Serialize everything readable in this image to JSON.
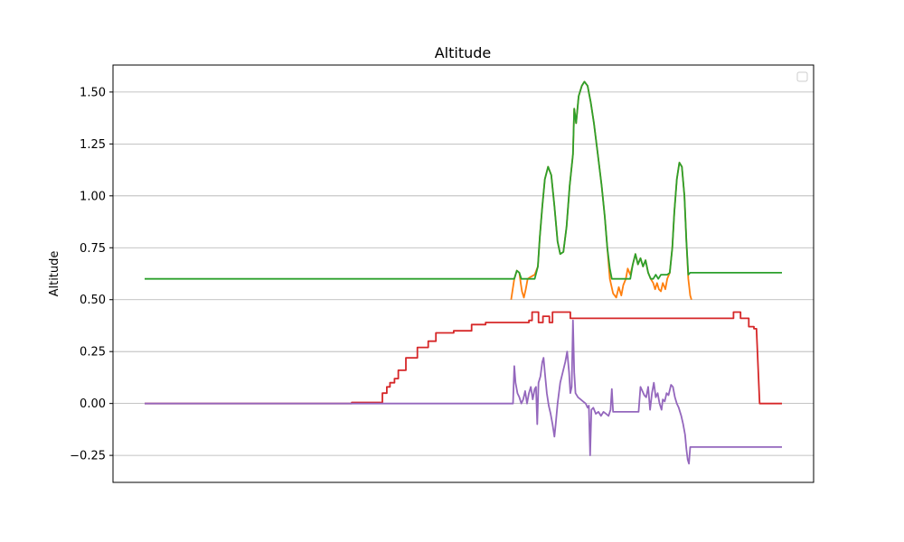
{
  "chart_data": {
    "type": "line",
    "title": "Altitude",
    "xlabel": "",
    "ylabel": "Altitude",
    "xlim": [
      0,
      1000
    ],
    "ylim": [
      -0.38,
      1.63
    ],
    "yticks": [
      -0.25,
      0.0,
      0.25,
      0.5,
      0.75,
      1.0,
      1.25,
      1.5
    ],
    "ytick_labels": [
      "−0.25",
      "0.00",
      "0.25",
      "0.50",
      "0.75",
      "1.00",
      "1.25",
      "1.50"
    ],
    "grid": "horizontal",
    "legend": "top-right (empty)",
    "series": [
      {
        "color": "#ff7f0e",
        "points": [
          [
            575,
            0.5
          ],
          [
            580,
            0.6
          ],
          [
            584,
            0.64
          ],
          [
            588,
            0.63
          ],
          [
            590,
            0.58
          ],
          [
            592,
            0.54
          ],
          [
            595,
            0.51
          ],
          [
            598,
            0.55
          ],
          [
            601,
            0.6
          ],
          [
            606,
            0.61
          ],
          [
            612,
            0.62
          ],
          [
            617,
            0.66
          ],
          [
            620,
            0.8
          ],
          [
            624,
            0.95
          ],
          [
            628,
            1.08
          ],
          [
            633,
            1.14
          ],
          [
            638,
            1.1
          ],
          [
            643,
            0.95
          ],
          [
            648,
            0.78
          ],
          [
            652,
            0.72
          ],
          [
            657,
            0.73
          ],
          [
            662,
            0.85
          ],
          [
            667,
            1.05
          ],
          [
            672,
            1.2
          ],
          [
            674,
            1.42
          ],
          [
            677,
            1.35
          ],
          [
            681,
            1.48
          ],
          [
            686,
            1.53
          ],
          [
            690,
            1.55
          ],
          [
            695,
            1.53
          ],
          [
            700,
            1.45
          ],
          [
            705,
            1.35
          ],
          [
            711,
            1.2
          ],
          [
            717,
            1.05
          ],
          [
            722,
            0.9
          ],
          [
            726,
            0.75
          ],
          [
            730,
            0.6
          ],
          [
            735,
            0.53
          ],
          [
            740,
            0.51
          ],
          [
            744,
            0.56
          ],
          [
            748,
            0.52
          ],
          [
            751,
            0.57
          ],
          [
            755,
            0.6
          ],
          [
            758,
            0.65
          ],
          [
            762,
            0.62
          ],
          [
            766,
            0.67
          ],
          [
            770,
            0.72
          ],
          [
            774,
            0.67
          ],
          [
            778,
            0.7
          ],
          [
            782,
            0.66
          ],
          [
            786,
            0.69
          ],
          [
            790,
            0.63
          ],
          [
            794,
            0.6
          ],
          [
            798,
            0.58
          ],
          [
            801,
            0.55
          ],
          [
            804,
            0.58
          ],
          [
            807,
            0.55
          ],
          [
            810,
            0.54
          ],
          [
            813,
            0.58
          ],
          [
            817,
            0.55
          ],
          [
            820,
            0.6
          ],
          [
            824,
            0.63
          ],
          [
            828,
            0.75
          ],
          [
            831,
            0.92
          ],
          [
            835,
            1.08
          ],
          [
            839,
            1.16
          ],
          [
            843,
            1.14
          ],
          [
            847,
            1.0
          ],
          [
            850,
            0.78
          ],
          [
            853,
            0.6
          ],
          [
            856,
            0.52
          ],
          [
            858,
            0.5
          ]
        ]
      },
      {
        "color": "#2ca02c",
        "points": [
          [
            0,
            0.6
          ],
          [
            575,
            0.6
          ],
          [
            577,
            0.6
          ],
          [
            580,
            0.6
          ],
          [
            584,
            0.64
          ],
          [
            588,
            0.63
          ],
          [
            591,
            0.6
          ],
          [
            612,
            0.6
          ],
          [
            617,
            0.66
          ],
          [
            620,
            0.8
          ],
          [
            624,
            0.95
          ],
          [
            628,
            1.08
          ],
          [
            633,
            1.14
          ],
          [
            638,
            1.1
          ],
          [
            643,
            0.95
          ],
          [
            648,
            0.78
          ],
          [
            652,
            0.72
          ],
          [
            657,
            0.73
          ],
          [
            662,
            0.85
          ],
          [
            667,
            1.05
          ],
          [
            672,
            1.2
          ],
          [
            674,
            1.42
          ],
          [
            677,
            1.35
          ],
          [
            681,
            1.48
          ],
          [
            686,
            1.53
          ],
          [
            690,
            1.55
          ],
          [
            695,
            1.53
          ],
          [
            700,
            1.45
          ],
          [
            705,
            1.35
          ],
          [
            711,
            1.2
          ],
          [
            717,
            1.05
          ],
          [
            722,
            0.9
          ],
          [
            726,
            0.75
          ],
          [
            730,
            0.65
          ],
          [
            733,
            0.6
          ],
          [
            762,
            0.6
          ],
          [
            766,
            0.67
          ],
          [
            770,
            0.72
          ],
          [
            774,
            0.67
          ],
          [
            778,
            0.7
          ],
          [
            782,
            0.66
          ],
          [
            786,
            0.69
          ],
          [
            790,
            0.63
          ],
          [
            794,
            0.6
          ],
          [
            798,
            0.6
          ],
          [
            802,
            0.62
          ],
          [
            806,
            0.6
          ],
          [
            810,
            0.62
          ],
          [
            820,
            0.62
          ],
          [
            824,
            0.63
          ],
          [
            828,
            0.75
          ],
          [
            831,
            0.92
          ],
          [
            835,
            1.08
          ],
          [
            839,
            1.16
          ],
          [
            843,
            1.14
          ],
          [
            847,
            1.0
          ],
          [
            850,
            0.78
          ],
          [
            853,
            0.62
          ],
          [
            856,
            0.63
          ],
          [
            1000,
            0.63
          ]
        ]
      },
      {
        "color": "#d62728",
        "points": [
          [
            0,
            0.0
          ],
          [
            325,
            0.0
          ],
          [
            325,
            0.005
          ],
          [
            373,
            0.005
          ],
          [
            373,
            0.05
          ],
          [
            380,
            0.05
          ],
          [
            380,
            0.08
          ],
          [
            385,
            0.08
          ],
          [
            385,
            0.1
          ],
          [
            392,
            0.1
          ],
          [
            392,
            0.12
          ],
          [
            398,
            0.12
          ],
          [
            398,
            0.16
          ],
          [
            410,
            0.16
          ],
          [
            410,
            0.22
          ],
          [
            428,
            0.22
          ],
          [
            428,
            0.27
          ],
          [
            445,
            0.27
          ],
          [
            445,
            0.3
          ],
          [
            457,
            0.3
          ],
          [
            457,
            0.34
          ],
          [
            485,
            0.34
          ],
          [
            485,
            0.35
          ],
          [
            513,
            0.35
          ],
          [
            513,
            0.38
          ],
          [
            535,
            0.38
          ],
          [
            535,
            0.39
          ],
          [
            603,
            0.39
          ],
          [
            603,
            0.4
          ],
          [
            608,
            0.4
          ],
          [
            608,
            0.44
          ],
          [
            618,
            0.44
          ],
          [
            618,
            0.39
          ],
          [
            625,
            0.39
          ],
          [
            625,
            0.42
          ],
          [
            635,
            0.42
          ],
          [
            635,
            0.39
          ],
          [
            640,
            0.39
          ],
          [
            640,
            0.44
          ],
          [
            668,
            0.44
          ],
          [
            668,
            0.41
          ],
          [
            924,
            0.41
          ],
          [
            924,
            0.44
          ],
          [
            935,
            0.44
          ],
          [
            935,
            0.41
          ],
          [
            948,
            0.41
          ],
          [
            948,
            0.37
          ],
          [
            956,
            0.37
          ],
          [
            956,
            0.36
          ],
          [
            960,
            0.36
          ],
          [
            965,
            0.0
          ],
          [
            1000,
            0.0
          ]
        ]
      },
      {
        "color": "#9467bd",
        "points": [
          [
            0,
            0.0
          ],
          [
            576,
            0.0
          ],
          [
            578,
            0.0
          ],
          [
            580,
            0.18
          ],
          [
            582,
            0.1
          ],
          [
            585,
            0.05
          ],
          [
            588,
            0.03
          ],
          [
            591,
            0.0
          ],
          [
            594,
            0.02
          ],
          [
            597,
            0.06
          ],
          [
            600,
            0.0
          ],
          [
            603,
            0.05
          ],
          [
            606,
            0.08
          ],
          [
            609,
            0.02
          ],
          [
            612,
            0.07
          ],
          [
            614,
            0.08
          ],
          [
            616,
            -0.1
          ],
          [
            618,
            0.1
          ],
          [
            621,
            0.13
          ],
          [
            624,
            0.2
          ],
          [
            626,
            0.22
          ],
          [
            628,
            0.15
          ],
          [
            631,
            0.05
          ],
          [
            634,
            -0.01
          ],
          [
            637,
            -0.05
          ],
          [
            640,
            -0.1
          ],
          [
            643,
            -0.16
          ],
          [
            645,
            -0.1
          ],
          [
            648,
            0.0
          ],
          [
            652,
            0.1
          ],
          [
            656,
            0.15
          ],
          [
            660,
            0.2
          ],
          [
            663,
            0.25
          ],
          [
            666,
            0.15
          ],
          [
            668,
            0.05
          ],
          [
            670,
            0.08
          ],
          [
            672,
            0.4
          ],
          [
            674,
            0.15
          ],
          [
            676,
            0.05
          ],
          [
            680,
            0.03
          ],
          [
            684,
            0.02
          ],
          [
            688,
            0.01
          ],
          [
            692,
            0.0
          ],
          [
            695,
            -0.02
          ],
          [
            697,
            -0.01
          ],
          [
            699,
            -0.25
          ],
          [
            701,
            -0.03
          ],
          [
            704,
            -0.02
          ],
          [
            708,
            -0.05
          ],
          [
            712,
            -0.04
          ],
          [
            716,
            -0.06
          ],
          [
            720,
            -0.04
          ],
          [
            724,
            -0.05
          ],
          [
            728,
            -0.06
          ],
          [
            731,
            -0.03
          ],
          [
            733,
            0.07
          ],
          [
            735,
            -0.04
          ],
          [
            737,
            -0.04
          ],
          [
            775,
            -0.04
          ],
          [
            778,
            0.08
          ],
          [
            781,
            0.06
          ],
          [
            784,
            0.04
          ],
          [
            787,
            0.03
          ],
          [
            790,
            0.08
          ],
          [
            793,
            -0.03
          ],
          [
            796,
            0.05
          ],
          [
            799,
            0.1
          ],
          [
            802,
            0.03
          ],
          [
            805,
            0.05
          ],
          [
            808,
            0.0
          ],
          [
            811,
            -0.03
          ],
          [
            813,
            0.02
          ],
          [
            816,
            0.01
          ],
          [
            819,
            0.05
          ],
          [
            822,
            0.04
          ],
          [
            826,
            0.09
          ],
          [
            829,
            0.08
          ],
          [
            832,
            0.03
          ],
          [
            835,
            0.0
          ],
          [
            838,
            -0.02
          ],
          [
            842,
            -0.06
          ],
          [
            845,
            -0.1
          ],
          [
            848,
            -0.15
          ],
          [
            850,
            -0.22
          ],
          [
            852,
            -0.27
          ],
          [
            854,
            -0.29
          ],
          [
            856,
            -0.21
          ],
          [
            1000,
            -0.21
          ]
        ]
      }
    ]
  }
}
